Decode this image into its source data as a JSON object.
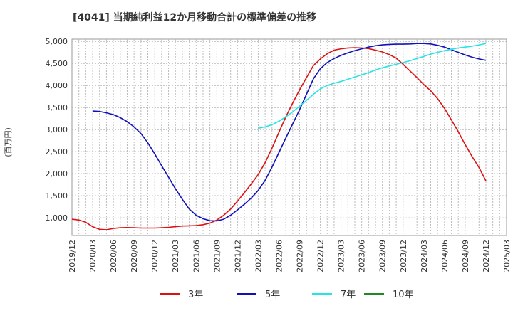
{
  "chart_data": {
    "type": "line",
    "title": "[4041]  当期純利益12か月移動合計の標準偏差の推移",
    "ylabel": "(百万円)",
    "xlabel": "",
    "ylim": [
      600,
      5050
    ],
    "yticks": [
      1000,
      1500,
      2000,
      2500,
      3000,
      3500,
      4000,
      4500,
      5000
    ],
    "ytick_labels": [
      "1,000",
      "1,500",
      "2,000",
      "2,500",
      "3,000",
      "3,500",
      "4,000",
      "4,500",
      "5,000"
    ],
    "x_start": "2019/12",
    "x_end": "2025/03",
    "x_ticks": [
      "2019/12",
      "2020/03",
      "2020/06",
      "2020/09",
      "2020/12",
      "2021/03",
      "2021/06",
      "2021/09",
      "2021/12",
      "2022/03",
      "2022/06",
      "2022/09",
      "2022/12",
      "2023/03",
      "2023/06",
      "2023/09",
      "2023/12",
      "2024/03",
      "2024/06",
      "2024/09",
      "2024/12",
      "2025/03"
    ],
    "grid": true,
    "legend_position": "bottom",
    "series": [
      {
        "name": "3年",
        "color": "#dd1111",
        "points": [
          [
            "2019/12",
            970
          ],
          [
            "2020/01",
            950
          ],
          [
            "2020/02",
            900
          ],
          [
            "2020/03",
            800
          ],
          [
            "2020/04",
            740
          ],
          [
            "2020/05",
            730
          ],
          [
            "2020/06",
            760
          ],
          [
            "2020/07",
            775
          ],
          [
            "2020/08",
            780
          ],
          [
            "2020/09",
            775
          ],
          [
            "2020/10",
            770
          ],
          [
            "2020/11",
            770
          ],
          [
            "2020/12",
            770
          ],
          [
            "2021/01",
            775
          ],
          [
            "2021/02",
            785
          ],
          [
            "2021/03",
            800
          ],
          [
            "2021/04",
            815
          ],
          [
            "2021/05",
            820
          ],
          [
            "2021/06",
            825
          ],
          [
            "2021/07",
            845
          ],
          [
            "2021/08",
            880
          ],
          [
            "2021/09",
            950
          ],
          [
            "2021/10",
            1060
          ],
          [
            "2021/11",
            1200
          ],
          [
            "2021/12",
            1380
          ],
          [
            "2022/01",
            1570
          ],
          [
            "2022/02",
            1770
          ],
          [
            "2022/03",
            1980
          ],
          [
            "2022/04",
            2250
          ],
          [
            "2022/05",
            2580
          ],
          [
            "2022/06",
            2940
          ],
          [
            "2022/07",
            3290
          ],
          [
            "2022/08",
            3600
          ],
          [
            "2022/09",
            3900
          ],
          [
            "2022/10",
            4180
          ],
          [
            "2022/11",
            4450
          ],
          [
            "2022/12",
            4600
          ],
          [
            "2023/01",
            4720
          ],
          [
            "2023/02",
            4800
          ],
          [
            "2023/03",
            4830
          ],
          [
            "2023/04",
            4850
          ],
          [
            "2023/05",
            4855
          ],
          [
            "2023/06",
            4850
          ],
          [
            "2023/07",
            4835
          ],
          [
            "2023/08",
            4800
          ],
          [
            "2023/09",
            4760
          ],
          [
            "2023/10",
            4700
          ],
          [
            "2023/11",
            4620
          ],
          [
            "2023/12",
            4480
          ],
          [
            "2024/01",
            4330
          ],
          [
            "2024/02",
            4180
          ],
          [
            "2024/03",
            4020
          ],
          [
            "2024/04",
            3880
          ],
          [
            "2024/05",
            3700
          ],
          [
            "2024/06",
            3480
          ],
          [
            "2024/07",
            3220
          ],
          [
            "2024/08",
            2950
          ],
          [
            "2024/09",
            2660
          ],
          [
            "2024/10",
            2390
          ],
          [
            "2024/11",
            2140
          ],
          [
            "2024/12",
            1840
          ]
        ]
      },
      {
        "name": "5年",
        "color": "#1111bb",
        "points": [
          [
            "2020/03",
            3420
          ],
          [
            "2020/04",
            3410
          ],
          [
            "2020/05",
            3380
          ],
          [
            "2020/06",
            3340
          ],
          [
            "2020/07",
            3270
          ],
          [
            "2020/08",
            3180
          ],
          [
            "2020/09",
            3060
          ],
          [
            "2020/10",
            2910
          ],
          [
            "2020/11",
            2700
          ],
          [
            "2020/12",
            2450
          ],
          [
            "2021/01",
            2180
          ],
          [
            "2021/02",
            1920
          ],
          [
            "2021/03",
            1660
          ],
          [
            "2021/04",
            1420
          ],
          [
            "2021/05",
            1200
          ],
          [
            "2021/06",
            1060
          ],
          [
            "2021/07",
            980
          ],
          [
            "2021/08",
            935
          ],
          [
            "2021/09",
            930
          ],
          [
            "2021/10",
            970
          ],
          [
            "2021/11",
            1060
          ],
          [
            "2021/12",
            1180
          ],
          [
            "2022/01",
            1310
          ],
          [
            "2022/02",
            1450
          ],
          [
            "2022/03",
            1620
          ],
          [
            "2022/04",
            1850
          ],
          [
            "2022/05",
            2150
          ],
          [
            "2022/06",
            2480
          ],
          [
            "2022/07",
            2810
          ],
          [
            "2022/08",
            3130
          ],
          [
            "2022/09",
            3450
          ],
          [
            "2022/10",
            3800
          ],
          [
            "2022/11",
            4150
          ],
          [
            "2022/12",
            4380
          ],
          [
            "2023/01",
            4520
          ],
          [
            "2023/02",
            4610
          ],
          [
            "2023/03",
            4680
          ],
          [
            "2023/04",
            4740
          ],
          [
            "2023/05",
            4790
          ],
          [
            "2023/06",
            4830
          ],
          [
            "2023/07",
            4870
          ],
          [
            "2023/08",
            4900
          ],
          [
            "2023/09",
            4920
          ],
          [
            "2023/10",
            4930
          ],
          [
            "2023/11",
            4935
          ],
          [
            "2023/12",
            4935
          ],
          [
            "2024/01",
            4940
          ],
          [
            "2024/02",
            4950
          ],
          [
            "2024/03",
            4950
          ],
          [
            "2024/04",
            4940
          ],
          [
            "2024/05",
            4910
          ],
          [
            "2024/06",
            4870
          ],
          [
            "2024/07",
            4810
          ],
          [
            "2024/08",
            4750
          ],
          [
            "2024/09",
            4690
          ],
          [
            "2024/10",
            4640
          ],
          [
            "2024/11",
            4600
          ],
          [
            "2024/12",
            4570
          ]
        ]
      },
      {
        "name": "7年",
        "color": "#22e5e5",
        "points": [
          [
            "2022/03",
            3030
          ],
          [
            "2022/04",
            3060
          ],
          [
            "2022/05",
            3110
          ],
          [
            "2022/06",
            3190
          ],
          [
            "2022/07",
            3290
          ],
          [
            "2022/08",
            3400
          ],
          [
            "2022/09",
            3530
          ],
          [
            "2022/10",
            3660
          ],
          [
            "2022/11",
            3800
          ],
          [
            "2022/12",
            3920
          ],
          [
            "2023/01",
            4000
          ],
          [
            "2023/02",
            4050
          ],
          [
            "2023/03",
            4090
          ],
          [
            "2023/04",
            4140
          ],
          [
            "2023/05",
            4190
          ],
          [
            "2023/06",
            4240
          ],
          [
            "2023/07",
            4290
          ],
          [
            "2023/08",
            4350
          ],
          [
            "2023/09",
            4400
          ],
          [
            "2023/10",
            4440
          ],
          [
            "2023/11",
            4480
          ],
          [
            "2023/12",
            4520
          ],
          [
            "2024/01",
            4560
          ],
          [
            "2024/02",
            4610
          ],
          [
            "2024/03",
            4660
          ],
          [
            "2024/04",
            4710
          ],
          [
            "2024/05",
            4750
          ],
          [
            "2024/06",
            4790
          ],
          [
            "2024/07",
            4820
          ],
          [
            "2024/08",
            4850
          ],
          [
            "2024/09",
            4870
          ],
          [
            "2024/10",
            4890
          ],
          [
            "2024/11",
            4920
          ],
          [
            "2024/12",
            4950
          ]
        ]
      },
      {
        "name": "10年",
        "color": "#228822",
        "points": []
      }
    ]
  }
}
